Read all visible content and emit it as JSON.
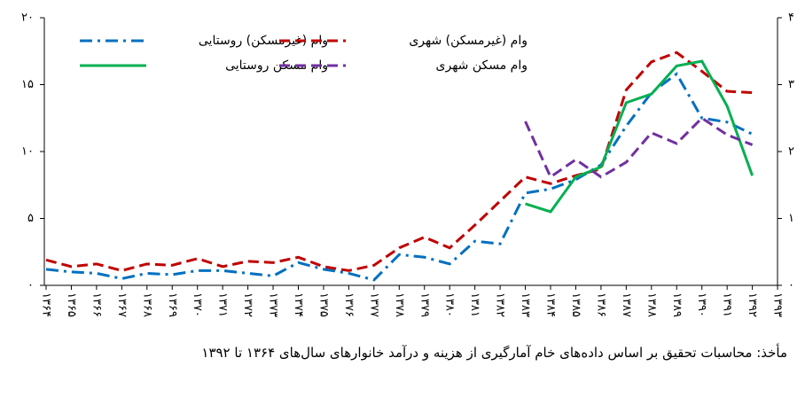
{
  "chart_data": {
    "type": "line",
    "categories": [
      "۱۳۶۴",
      "۱۳۶۵",
      "۱۳۶۶",
      "۱۳۶۷",
      "۱۳۶۸",
      "۱۳۶۹",
      "۱۳۷۰",
      "۱۳۷۱",
      "۱۳۷۲",
      "۱۳۷۳",
      "۱۳۷۴",
      "۱۳۷۵",
      "۱۳۷۶",
      "۱۳۷۷",
      "۱۳۷۸",
      "۱۳۷۹",
      "۱۳۸۰",
      "۱۳۸۱",
      "۱۳۸۲",
      "۱۳۸۳",
      "۱۳۸۴",
      "۱۳۸۵",
      "۱۳۸۶",
      "۱۳۸۷",
      "۱۳۸۸",
      "۱۳۸۹",
      "۱۳۹۰",
      "۱۳۹۱",
      "۱۳۹۲",
      "۱۳۹۳"
    ],
    "series": [
      {
        "name": "وام (غیرمسکن) روستایی",
        "color": "#0070c0",
        "dash": "dashdot",
        "values": [
          1.2,
          1.0,
          0.9,
          0.5,
          0.9,
          0.8,
          1.1,
          1.1,
          0.9,
          0.7,
          1.7,
          1.2,
          0.9,
          0.4,
          2.3,
          2.1,
          1.6,
          3.3,
          3.1,
          6.9,
          7.2,
          7.9,
          9.0,
          11.9,
          14.4,
          15.8,
          12.5,
          12.2,
          11.3,
          null
        ]
      },
      {
        "name": "وام (غیرمسکن) شهری",
        "color": "#c00000",
        "dash": "dashed",
        "values": [
          1.9,
          1.4,
          1.6,
          1.1,
          1.6,
          1.5,
          2.0,
          1.4,
          1.8,
          1.7,
          2.1,
          1.4,
          1.1,
          1.5,
          2.8,
          3.6,
          2.8,
          4.5,
          6.3,
          8.1,
          7.6,
          8.2,
          8.7,
          14.6,
          16.7,
          17.4,
          16.0,
          14.5,
          14.4,
          null
        ]
      },
      {
        "name": "وام مسکن روستایی",
        "color": "#00b050",
        "dash": "solid",
        "axis": "y2",
        "values": [
          null,
          null,
          null,
          null,
          null,
          null,
          null,
          null,
          null,
          null,
          null,
          null,
          null,
          null,
          null,
          null,
          null,
          null,
          null,
          1.22,
          1.1,
          1.62,
          1.77,
          2.73,
          2.86,
          3.28,
          3.35,
          2.68,
          1.64,
          null
        ]
      },
      {
        "name": "وام مسکن شهری",
        "color": "#7030a0",
        "dash": "dashed",
        "axis": "y2",
        "values": [
          null,
          null,
          null,
          null,
          null,
          null,
          null,
          null,
          null,
          null,
          null,
          null,
          null,
          null,
          null,
          null,
          null,
          null,
          null,
          2.45,
          1.62,
          1.88,
          1.62,
          1.84,
          2.28,
          2.12,
          2.5,
          2.25,
          2.1,
          null
        ]
      }
    ],
    "ylim": [
      0,
      20
    ],
    "yticks": [
      {
        "value": 0,
        "label": "۰"
      },
      {
        "value": 5,
        "label": "۵"
      },
      {
        "value": 10,
        "label": "۱۰"
      },
      {
        "value": 15,
        "label": "۱۵"
      },
      {
        "value": 20,
        "label": "۲۰"
      }
    ],
    "y2lim": [
      0,
      4
    ],
    "y2ticks": [
      {
        "value": 0,
        "label": "۰"
      },
      {
        "value": 1,
        "label": "۱"
      },
      {
        "value": 2,
        "label": "۲"
      },
      {
        "value": 3,
        "label": "۳"
      },
      {
        "value": 4,
        "label": "۴"
      }
    ],
    "legend": "top-left",
    "note": "مأخذ: محاسبات تحقیق بر اساس داده‌های خام آمارگیری از هزینه و درآمد خانوارهای سال‌های ۱۳۶۴ تا ۱۳۹۲"
  }
}
